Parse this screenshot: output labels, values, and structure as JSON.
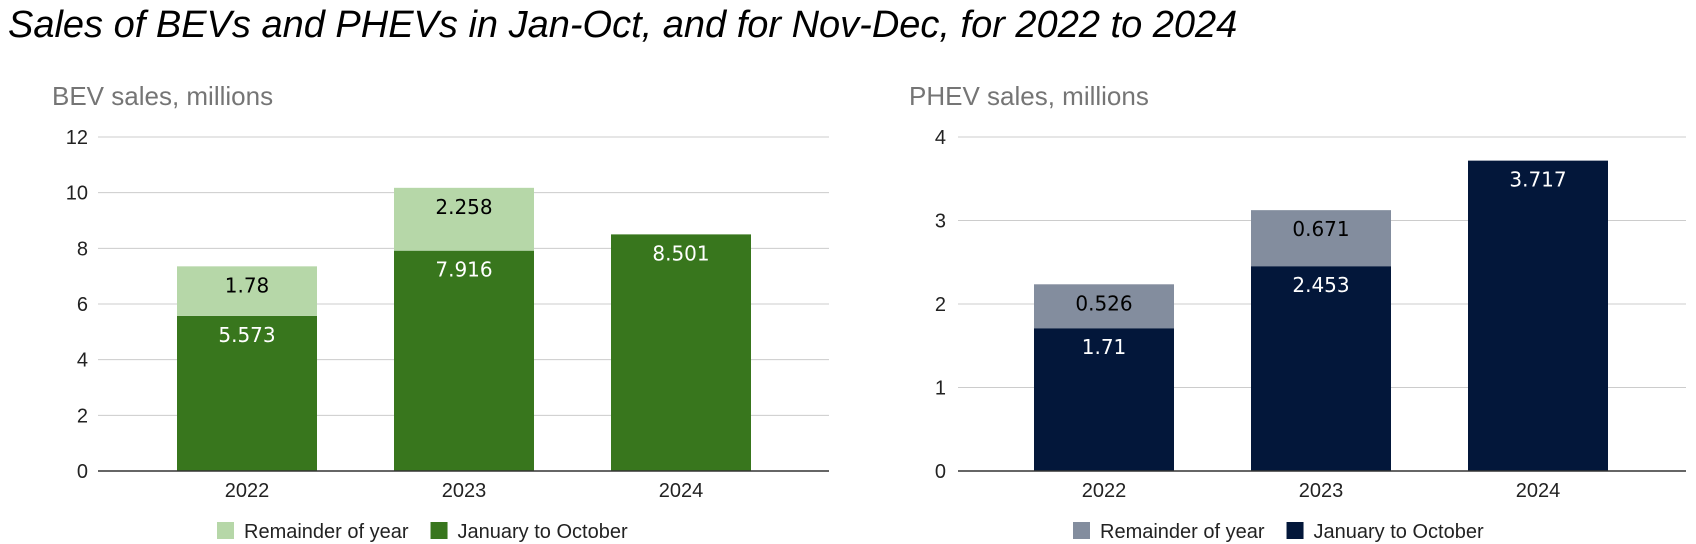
{
  "title": "Sales of BEVs and PHEVs in Jan-Oct, and for Nov-Dec, for 2022 to 2024",
  "chart_data": [
    {
      "type": "bar",
      "stacked": true,
      "title": "BEV sales, millions",
      "categories": [
        "2022",
        "2023",
        "2024"
      ],
      "series": [
        {
          "name": "January to October",
          "values": [
            5.573,
            7.916,
            8.501
          ],
          "color": "#38761d",
          "label_color": "#ffffff"
        },
        {
          "name": "Remainder of year",
          "values": [
            1.78,
            2.258,
            null
          ],
          "color": "#b6d7a8",
          "label_color": "#000000"
        }
      ],
      "legend_order": [
        "Remainder of year",
        "January to October"
      ],
      "ylim": [
        0,
        12
      ],
      "yticks": [
        0,
        2,
        4,
        6,
        8,
        10,
        12
      ],
      "grid": true,
      "legend_position": "bottom"
    },
    {
      "type": "bar",
      "stacked": true,
      "title": "PHEV sales, millions",
      "categories": [
        "2022",
        "2023",
        "2024"
      ],
      "series": [
        {
          "name": "January to October",
          "values": [
            1.71,
            2.453,
            3.717
          ],
          "color": "#03173a",
          "label_color": "#ffffff"
        },
        {
          "name": "Remainder of year",
          "values": [
            0.526,
            0.671,
            null
          ],
          "color": "#838d9e",
          "label_color": "#000000"
        }
      ],
      "legend_order": [
        "Remainder of year",
        "January to October"
      ],
      "ylim": [
        0,
        4
      ],
      "yticks": [
        0,
        1,
        2,
        3,
        4
      ],
      "grid": true,
      "legend_position": "bottom"
    }
  ]
}
